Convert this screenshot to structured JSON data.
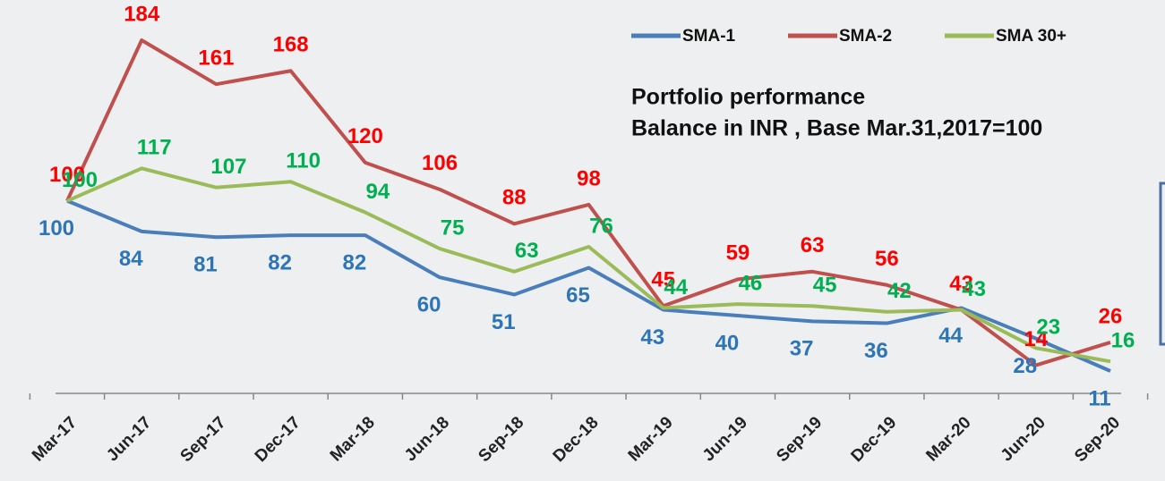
{
  "chart_data": {
    "type": "line",
    "title": "Portfolio performance",
    "subtitle": "Balance in INR , Base Mar.31,2017=100",
    "categories": [
      "Mar-17",
      "Jun-17",
      "Sep-17",
      "Dec-17",
      "Mar-18",
      "Jun-18",
      "Sep-18",
      "Dec-18",
      "Mar-19",
      "Jun-19",
      "Sep-19",
      "Dec-19",
      "Mar-20",
      "Jun-20",
      "Sep-20"
    ],
    "series": [
      {
        "name": "SMA-1",
        "color": "#4a7ebb",
        "label_color": "#2e75b6",
        "values": [
          100,
          84,
          81,
          82,
          82,
          60,
          51,
          65,
          43,
          40,
          37,
          36,
          44,
          28,
          11
        ]
      },
      {
        "name": "SMA-2",
        "color": "#c0504d",
        "label_color": "#ff0000",
        "values": [
          100,
          184,
          161,
          168,
          120,
          106,
          88,
          98,
          45,
          59,
          63,
          56,
          43,
          14,
          26
        ]
      },
      {
        "name": "SMA 30+",
        "color": "#9bbb59",
        "label_color": "#00b050",
        "values": [
          100,
          117,
          107,
          110,
          94,
          75,
          63,
          76,
          44,
          46,
          45,
          42,
          43,
          23,
          16
        ]
      }
    ],
    "legend": "top-right"
  }
}
